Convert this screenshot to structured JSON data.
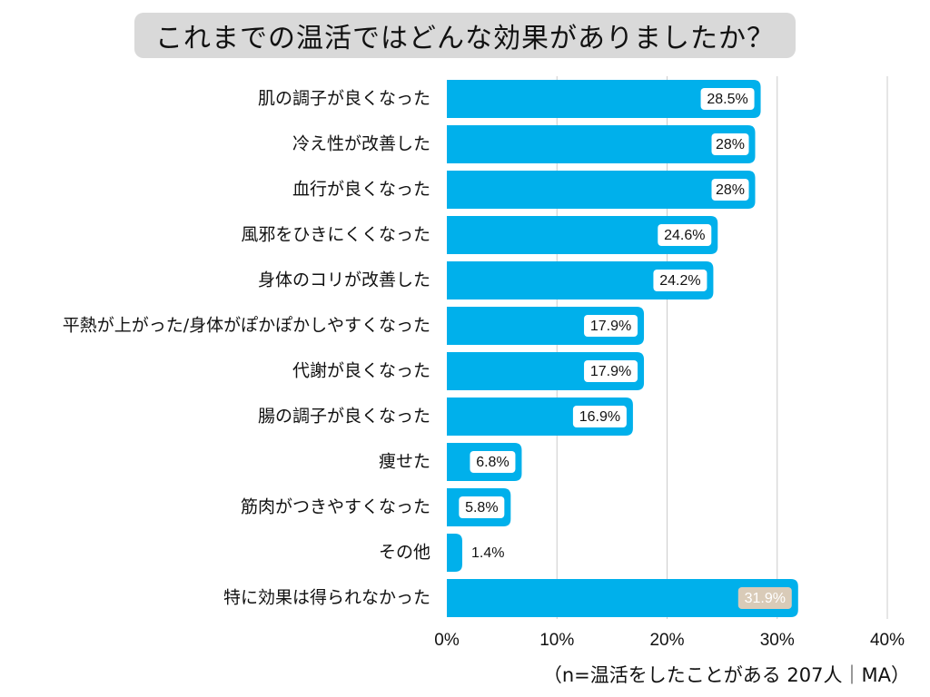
{
  "title": "これまでの温活ではどんな効果がありましたか？",
  "note": "（n=温活をしたことがある 207人｜MA）",
  "colors": {
    "bar": "#00b0eb",
    "label_bg": "#ffffff",
    "highlight_label_bg": "#d9cbb8",
    "grid": "#cccccc",
    "title_bg": "#d9d9d9"
  },
  "chart_data": {
    "type": "bar",
    "orientation": "horizontal",
    "categories": [
      "肌の調子が良くなった",
      "冷え性が改善した",
      "血行が良くなった",
      "風邪をひきにくくなった",
      "身体のコリが改善した",
      "平熱が上がった/身体がぽかぽかしやすくなった",
      "代謝が良くなった",
      "腸の調子が良くなった",
      "痩せた",
      "筋肉がつきやすくなった",
      "その他",
      "特に効果は得られなかった"
    ],
    "values": [
      28.5,
      28,
      28,
      24.6,
      24.2,
      17.9,
      17.9,
      16.9,
      6.8,
      5.8,
      1.4,
      31.9
    ],
    "value_labels": [
      "28.5%",
      "28%",
      "28%",
      "24.6%",
      "24.2%",
      "17.9%",
      "17.9%",
      "16.9%",
      "6.8%",
      "5.8%",
      "1.4%",
      "31.9%"
    ],
    "highlight_index": 11,
    "xlim": [
      0,
      40
    ],
    "xticks": [
      0,
      10,
      20,
      30,
      40
    ],
    "xtick_labels": [
      "0%",
      "10%",
      "20%",
      "30%",
      "40%"
    ],
    "grid": true
  }
}
